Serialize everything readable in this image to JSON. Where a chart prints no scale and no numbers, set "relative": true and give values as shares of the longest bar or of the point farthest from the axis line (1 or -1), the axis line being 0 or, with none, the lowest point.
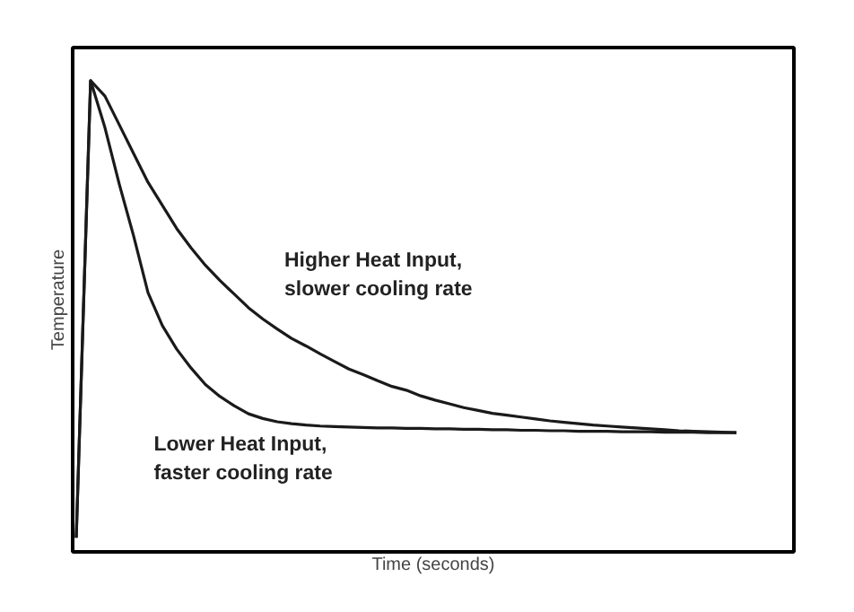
{
  "chart_data": {
    "type": "line",
    "relative": true,
    "xlabel": "Time (seconds)",
    "ylabel": "Temperature",
    "marker": "none",
    "line_style": "solid",
    "categories": [
      null,
      null,
      null,
      null,
      null,
      null,
      null,
      null,
      null,
      null,
      null,
      null,
      null,
      null,
      null,
      null,
      null,
      null,
      null,
      null,
      null,
      null,
      null,
      null,
      null,
      null,
      null,
      null,
      null,
      null,
      null,
      null,
      null,
      null,
      null,
      null,
      null,
      null,
      null,
      null,
      null,
      null,
      null,
      null,
      null,
      null,
      null
    ],
    "series": [
      {
        "color": "#1a1a1a",
        "values": [
          0.03,
          1,
          0.967,
          0.906,
          0.845,
          0.784,
          0.735,
          0.686,
          0.645,
          0.608,
          0.576,
          0.547,
          0.518,
          0.494,
          0.473,
          0.453,
          0.437,
          0.42,
          0.404,
          0.388,
          0.376,
          0.363,
          0.351,
          0.343,
          0.331,
          0.322,
          0.314,
          0.306,
          0.3,
          0.294,
          0.29,
          0.286,
          0.282,
          0.278,
          0.275,
          0.272,
          0.269,
          0.267,
          0.265,
          0.263,
          0.261,
          0.259,
          0.257,
          0.256,
          0.255,
          0.254,
          0.253
        ]
      },
      {
        "color": "#1a1a1a",
        "values": [
          0.03,
          1,
          0.9,
          0.78,
          0.67,
          0.55,
          0.48,
          0.43,
          0.39,
          0.355,
          0.33,
          0.31,
          0.293,
          0.283,
          0.276,
          0.272,
          0.269,
          0.267,
          0.266,
          0.265,
          0.264,
          0.263,
          0.263,
          0.262,
          0.262,
          0.261,
          0.261,
          0.26,
          0.26,
          0.259,
          0.259,
          0.258,
          0.258,
          0.257,
          0.257,
          0.256,
          0.256,
          0.256,
          0.255,
          0.255,
          0.255,
          0.254,
          0.254,
          0.254,
          0.253,
          0.253,
          0.253
        ]
      }
    ],
    "annotations": [
      "Higher Heat Input,\nslower cooling rate",
      "Lower Heat Input,\nfaster cooling rate"
    ]
  }
}
